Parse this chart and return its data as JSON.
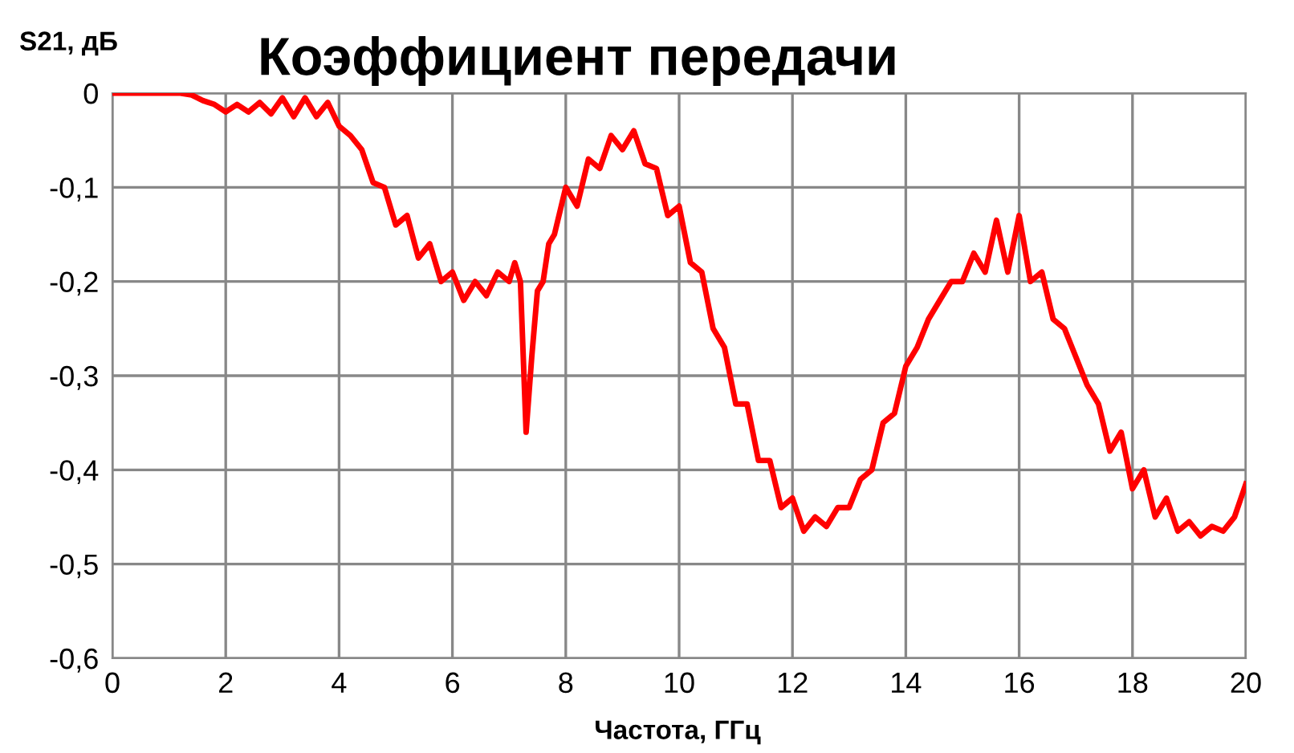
{
  "chart_data": {
    "type": "line",
    "title": "Коэффициент передачи",
    "xlabel": "Частота, ГГц",
    "ylabel": "S21, дБ",
    "series": [
      {
        "color": "#ff0000",
        "x": [
          0,
          0.6,
          1.2,
          1.4,
          1.6,
          1.8,
          2.0,
          2.2,
          2.4,
          2.6,
          2.8,
          3.0,
          3.2,
          3.4,
          3.6,
          3.8,
          4.0,
          4.2,
          4.4,
          4.6,
          4.8,
          5.0,
          5.2,
          5.4,
          5.6,
          5.8,
          6.0,
          6.2,
          6.4,
          6.6,
          6.8,
          7.0,
          7.1,
          7.2,
          7.3,
          7.4,
          7.5,
          7.6,
          7.7,
          7.8,
          8.0,
          8.2,
          8.4,
          8.6,
          8.8,
          9.0,
          9.2,
          9.4,
          9.6,
          9.8,
          10.0,
          10.2,
          10.4,
          10.6,
          10.8,
          11.0,
          11.2,
          11.4,
          11.6,
          11.8,
          12.0,
          12.2,
          12.4,
          12.6,
          12.8,
          13.0,
          13.2,
          13.4,
          13.6,
          13.8,
          14.0,
          14.2,
          14.4,
          14.6,
          14.8,
          15.0,
          15.2,
          15.4,
          15.6,
          15.8,
          16.0,
          16.2,
          16.4,
          16.6,
          16.8,
          17.0,
          17.2,
          17.4,
          17.6,
          17.8,
          18.0,
          18.2,
          18.4,
          18.6,
          18.8,
          19.0,
          19.2,
          19.4,
          19.6,
          19.8,
          20.0
        ],
        "values": [
          0,
          0,
          0,
          -0.002,
          -0.008,
          -0.012,
          -0.02,
          -0.012,
          -0.02,
          -0.01,
          -0.022,
          -0.005,
          -0.025,
          -0.005,
          -0.025,
          -0.01,
          -0.035,
          -0.045,
          -0.06,
          -0.095,
          -0.1,
          -0.14,
          -0.13,
          -0.175,
          -0.16,
          -0.2,
          -0.19,
          -0.22,
          -0.2,
          -0.215,
          -0.19,
          -0.2,
          -0.18,
          -0.2,
          -0.36,
          -0.28,
          -0.21,
          -0.2,
          -0.16,
          -0.15,
          -0.1,
          -0.12,
          -0.07,
          -0.08,
          -0.045,
          -0.06,
          -0.04,
          -0.075,
          -0.08,
          -0.13,
          -0.12,
          -0.18,
          -0.19,
          -0.25,
          -0.27,
          -0.33,
          -0.33,
          -0.39,
          -0.39,
          -0.44,
          -0.43,
          -0.465,
          -0.45,
          -0.46,
          -0.44,
          -0.44,
          -0.41,
          -0.4,
          -0.35,
          -0.34,
          -0.29,
          -0.27,
          -0.24,
          -0.22,
          -0.2,
          -0.2,
          -0.17,
          -0.19,
          -0.135,
          -0.19,
          -0.13,
          -0.2,
          -0.19,
          -0.24,
          -0.25,
          -0.28,
          -0.31,
          -0.33,
          -0.38,
          -0.36,
          -0.42,
          -0.4,
          -0.45,
          -0.43,
          -0.465,
          -0.455,
          -0.47,
          -0.46,
          -0.465,
          -0.45,
          -0.415
        ]
      }
    ],
    "xlim": [
      0,
      20
    ],
    "xticks": [
      0,
      2,
      4,
      6,
      8,
      10,
      12,
      14,
      16,
      18,
      20
    ],
    "ylim": [
      -0.6,
      0
    ],
    "yticks": [
      {
        "value": -0.6,
        "label": "-0,6"
      },
      {
        "value": -0.5,
        "label": "-0,5"
      },
      {
        "value": -0.4,
        "label": "-0,4"
      },
      {
        "value": -0.3,
        "label": "-0,3"
      },
      {
        "value": -0.2,
        "label": "-0,2"
      },
      {
        "value": -0.1,
        "label": "-0,1"
      },
      0
    ],
    "grid": true,
    "legend": false,
    "marker": "none",
    "line_style": "solid"
  }
}
